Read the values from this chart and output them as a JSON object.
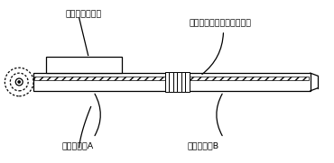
{
  "bg_color": "#ffffff",
  "line_color": "#000000",
  "label_circuit": "電子回路用筐体",
  "label_display": "フレキシブルディスプレイ",
  "label_bodyA": "略平板筐体A",
  "label_bodyB": "略平板筐体B",
  "fig_width": 3.7,
  "fig_height": 1.81,
  "dpi": 100
}
